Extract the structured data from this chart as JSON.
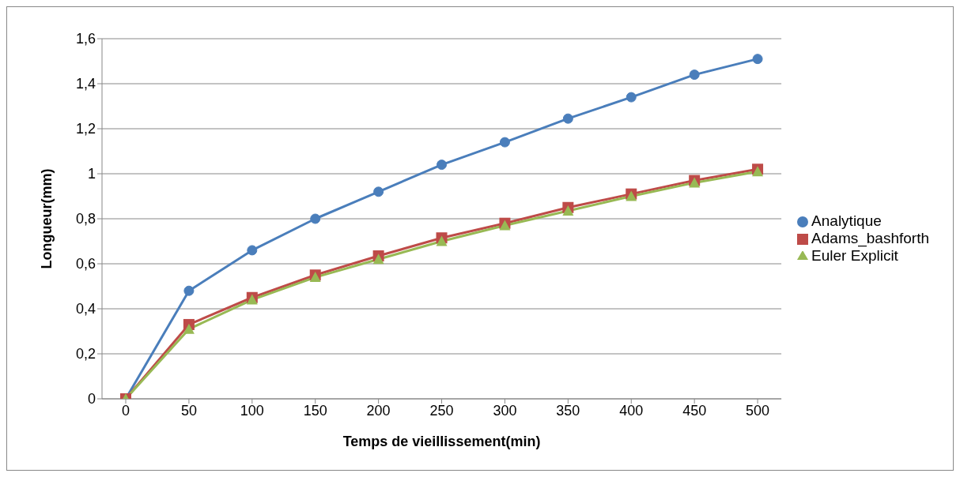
{
  "chart_data": {
    "type": "line",
    "xlabel": "Temps de vieillissement(min)",
    "ylabel": "Longueur(mm)",
    "categories": [
      "0",
      "50",
      "100",
      "150",
      "200",
      "250",
      "300",
      "350",
      "400",
      "450",
      "500"
    ],
    "series": [
      {
        "name": "Analytique",
        "color": "#4a7ebb",
        "marker": "circle",
        "values": [
          0,
          0.48,
          0.66,
          0.8,
          0.92,
          1.04,
          1.14,
          1.245,
          1.34,
          1.44,
          1.51
        ]
      },
      {
        "name": "Adams_bashforth",
        "color": "#be4b48",
        "marker": "square",
        "values": [
          0,
          0.33,
          0.45,
          0.55,
          0.635,
          0.715,
          0.78,
          0.85,
          0.91,
          0.97,
          1.02
        ]
      },
      {
        "name": "Euler Explicit",
        "color": "#98b954",
        "marker": "triangle",
        "values": [
          0,
          0.31,
          0.44,
          0.54,
          0.62,
          0.7,
          0.77,
          0.835,
          0.9,
          0.96,
          1.01
        ]
      }
    ],
    "ylim": [
      0,
      1.6
    ],
    "yticks": [
      0,
      {
        "value": 0.2,
        "label": "0,2"
      },
      {
        "value": 0.4,
        "label": "0,4"
      },
      {
        "value": 0.6,
        "label": "0,6"
      },
      {
        "value": 0.8,
        "label": "0,8"
      },
      1,
      {
        "value": 1.2,
        "label": "1,2"
      },
      {
        "value": 1.4,
        "label": "1,4"
      },
      {
        "value": 1.6,
        "label": "1,6"
      }
    ],
    "grid": "y",
    "legend": "right",
    "line_style": "solid"
  }
}
